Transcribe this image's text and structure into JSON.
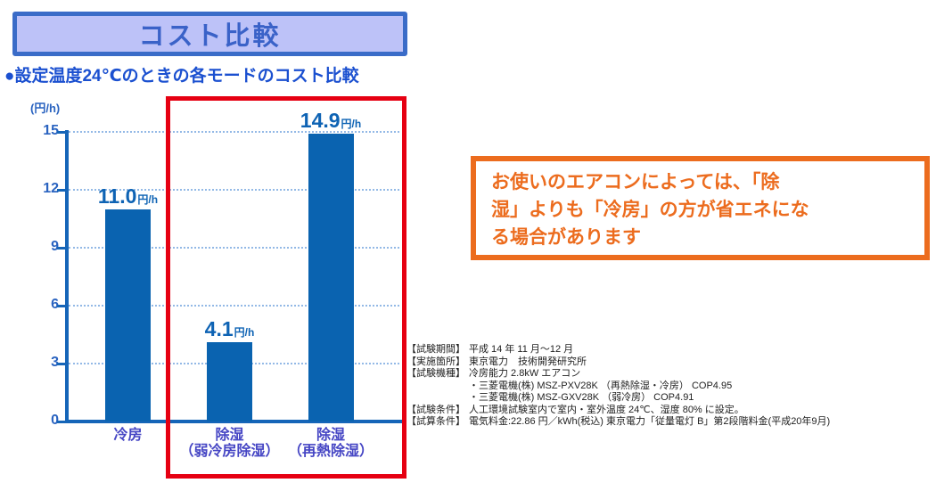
{
  "title_banner": {
    "label": "コスト比較"
  },
  "subtitle": "●設定温度24℃のときの各モードのコスト比較",
  "chart_data": {
    "type": "bar",
    "title": "設定温度24℃のときの各モードのコスト比較",
    "ylabel": "(円/h)",
    "unit_label": "(円/h)",
    "categories": [
      "冷房",
      "除湿（弱冷房除湿）",
      "除湿（再熱除湿）"
    ],
    "category_lines": [
      [
        "冷房"
      ],
      [
        "除湿",
        "（弱冷房除湿）"
      ],
      [
        "除湿",
        "（再熱除湿）"
      ]
    ],
    "values": [
      11.0,
      4.1,
      14.9
    ],
    "value_label_nums": [
      "11.0",
      "4.1",
      "14.9"
    ],
    "value_label_unit": "円/h",
    "y_ticks": [
      0,
      3,
      6,
      9,
      12,
      15
    ],
    "ylim": [
      0,
      15
    ],
    "grid": "dotted horizontal gridlines at each tick",
    "legend": "none",
    "bar_color": "#0a63b0",
    "highlight": {
      "shape": "red rectangle around the two dehumidify bars",
      "color": "#e60012",
      "categories_covered": [
        "除湿（弱冷房除湿）",
        "除湿（再熱除湿）"
      ]
    }
  },
  "callout": {
    "text": "お使いのエアコンによっては、「除湿」よりも「冷房」の方が省エネになる場合があります",
    "lines": [
      "お使いのエアコンによっては、「除",
      "湿」よりも「冷房」の方が省エネにな",
      "る場合があります"
    ],
    "border_color": "#ec6c1e"
  },
  "footnotes": [
    {
      "label": "【試験期間】",
      "text": "平成 14 年 11 月～12 月"
    },
    {
      "label": "【実施箇所】",
      "text": "東京電力　技術開発研究所"
    },
    {
      "label": "【試験機種】",
      "text": "冷房能力 2.8kW エアコン"
    },
    {
      "label": "",
      "text": "・三菱電機(株) MSZ-PXV28K （再熱除湿・冷房） COP4.95"
    },
    {
      "label": "",
      "text": "・三菱電機(株) MSZ-GXV28K （弱冷房） COP4.91"
    },
    {
      "label": "【試験条件】",
      "text": "人工環境試験室内で室内・室外温度 24℃、湿度 80% に設定。"
    },
    {
      "label": "【試算条件】",
      "text": "電気料金:22.86 円／kWh(税込) 東京電力「従量電灯 B」第2段階料金(平成20年9月)"
    }
  ],
  "colors": {
    "bar_blue": "#0a63b0",
    "axis_blue": "#1565b8",
    "tick_label_blue": "#2a63c0",
    "category_label_indigo": "#4545c4",
    "subtitle_blue": "#1b50d0",
    "title_text_blue": "#3a62c8",
    "title_fill_lavender": "#bdc2f8",
    "title_border_blue": "#3a6cc8",
    "highlight_red": "#e60012",
    "callout_orange": "#ec6c1e"
  }
}
